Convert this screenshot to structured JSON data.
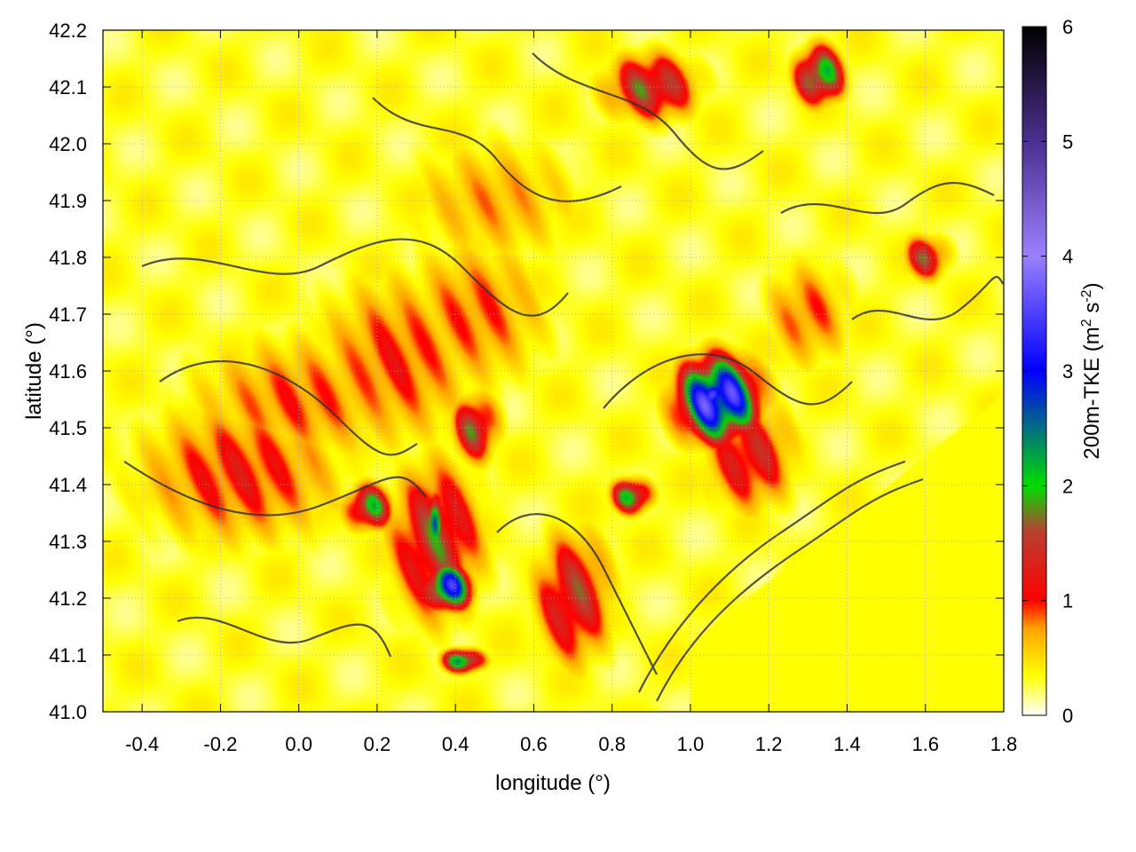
{
  "chart_data": {
    "type": "heatmap",
    "title": "",
    "xlabel": "longitude (°)",
    "ylabel": "latitude (°)",
    "xlim": [
      -0.5,
      1.8
    ],
    "ylim": [
      41.0,
      42.2
    ],
    "x_ticks": [
      -0.4,
      -0.2,
      0.0,
      0.2,
      0.4,
      0.6,
      0.8,
      1.0,
      1.2,
      1.4,
      1.6,
      1.8
    ],
    "x_tick_labels": [
      "-0.4",
      "-0.2",
      "0.0",
      "0.2",
      "0.4",
      "0.6",
      "0.8",
      "1.0",
      "1.2",
      "1.4",
      "1.6",
      "1.8"
    ],
    "y_ticks": [
      41.0,
      41.1,
      41.2,
      41.3,
      41.4,
      41.5,
      41.6,
      41.7,
      41.8,
      41.9,
      42.0,
      42.1,
      42.2
    ],
    "y_tick_labels": [
      "41.0",
      "41.1",
      "41.2",
      "41.3",
      "41.4",
      "41.5",
      "41.6",
      "41.7",
      "41.8",
      "41.9",
      "42.0",
      "42.1",
      "42.2"
    ],
    "grid": true,
    "colorbar": {
      "label_main": "200m-TKE (m",
      "label_sup1": "2",
      "label_mid": " s",
      "label_sup2": "-2",
      "label_end": ")",
      "range": [
        0,
        6
      ],
      "ticks": [
        0,
        1,
        2,
        3,
        4,
        5,
        6
      ],
      "tick_labels": [
        "0",
        "1",
        "2",
        "3",
        "4",
        "5",
        "6"
      ],
      "colormap": [
        {
          "v": 0.0,
          "color": "#ffffff"
        },
        {
          "v": 0.35,
          "color": "#ffff00"
        },
        {
          "v": 0.75,
          "color": "#ffa500"
        },
        {
          "v": 1.0,
          "color": "#ff0000"
        },
        {
          "v": 1.6,
          "color": "#b84030"
        },
        {
          "v": 2.0,
          "color": "#00dd00"
        },
        {
          "v": 3.0,
          "color": "#0000ff"
        },
        {
          "v": 4.0,
          "color": "#9a80ff"
        },
        {
          "v": 5.0,
          "color": "#4a3090"
        },
        {
          "v": 6.0,
          "color": "#000000"
        }
      ]
    },
    "hotspots": [
      {
        "lon": -0.15,
        "lat": 41.42,
        "tke": 1.3,
        "rx": 0.28,
        "ry": 0.13
      },
      {
        "lon": 0.0,
        "lat": 41.55,
        "tke": 1.1,
        "rx": 0.3,
        "ry": 0.12
      },
      {
        "lon": 0.25,
        "lat": 41.62,
        "tke": 1.2,
        "rx": 0.22,
        "ry": 0.16
      },
      {
        "lon": 0.45,
        "lat": 41.7,
        "tke": 1.1,
        "rx": 0.2,
        "ry": 0.14
      },
      {
        "lon": 0.35,
        "lat": 41.3,
        "tke": 1.9,
        "rx": 0.12,
        "ry": 0.14
      },
      {
        "lon": 0.38,
        "lat": 41.22,
        "tke": 3.8,
        "rx": 0.06,
        "ry": 0.04
      },
      {
        "lon": 0.35,
        "lat": 41.34,
        "tke": 3.2,
        "rx": 0.02,
        "ry": 0.05
      },
      {
        "lon": 0.42,
        "lat": 41.09,
        "tke": 3.0,
        "rx": 0.05,
        "ry": 0.02
      },
      {
        "lon": 0.18,
        "lat": 41.36,
        "tke": 2.4,
        "rx": 0.06,
        "ry": 0.04
      },
      {
        "lon": 0.45,
        "lat": 41.5,
        "tke": 2.0,
        "rx": 0.06,
        "ry": 0.06
      },
      {
        "lon": 0.7,
        "lat": 41.2,
        "tke": 1.8,
        "rx": 0.1,
        "ry": 0.12
      },
      {
        "lon": 1.07,
        "lat": 41.55,
        "tke": 4.5,
        "rx": 0.1,
        "ry": 0.07
      },
      {
        "lon": 1.06,
        "lat": 41.56,
        "tke": 5.7,
        "rx": 0.03,
        "ry": 0.025
      },
      {
        "lon": 0.85,
        "lat": 41.38,
        "tke": 2.6,
        "rx": 0.05,
        "ry": 0.03
      },
      {
        "lon": 1.15,
        "lat": 41.45,
        "tke": 1.6,
        "rx": 0.12,
        "ry": 0.1
      },
      {
        "lon": 0.9,
        "lat": 42.1,
        "tke": 2.0,
        "rx": 0.12,
        "ry": 0.06
      },
      {
        "lon": 1.33,
        "lat": 42.12,
        "tke": 2.8,
        "rx": 0.06,
        "ry": 0.05
      },
      {
        "lon": 1.6,
        "lat": 41.8,
        "tke": 1.8,
        "rx": 0.06,
        "ry": 0.04
      },
      {
        "lon": 0.5,
        "lat": 41.9,
        "tke": 0.9,
        "rx": 0.25,
        "ry": 0.12
      },
      {
        "lon": 1.3,
        "lat": 41.7,
        "tke": 1.1,
        "rx": 0.12,
        "ry": 0.1
      }
    ]
  }
}
